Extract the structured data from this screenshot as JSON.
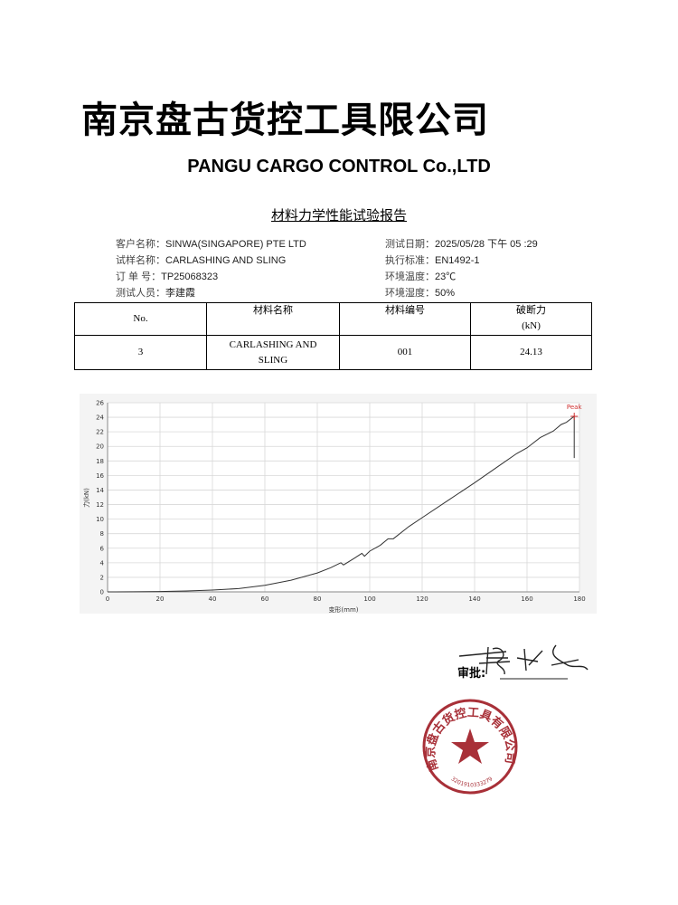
{
  "header": {
    "company_cn": "南京盘古货控工具限公司",
    "company_en": "PANGU CARGO CONTROL Co.,LTD",
    "report_title": "材料力学性能试验报告"
  },
  "info": {
    "left": [
      {
        "label": "客户名称：",
        "value": "SINWA(SINGAPORE) PTE LTD"
      },
      {
        "label": "试样名称：",
        "value": "CARLASHING AND SLING"
      },
      {
        "label": "订 单 号：",
        "value": "TP25068323"
      },
      {
        "label": "测试人员：",
        "value": "李建霞"
      }
    ],
    "right": [
      {
        "label": "测试日期：",
        "value": "2025/05/28 下午 05 :29"
      },
      {
        "label": "执行标准：",
        "value": "EN1492-1"
      },
      {
        "label": "环境温度：",
        "value": "23℃"
      },
      {
        "label": "环境湿度：",
        "value": "50%"
      }
    ]
  },
  "table": {
    "headers": [
      "No.",
      "材料名称",
      "材料编号",
      "破断力",
      "(kN)"
    ],
    "rows": [
      [
        "3",
        "CARLASHING AND SLING",
        "001",
        "24.13"
      ]
    ]
  },
  "chart_data": {
    "type": "line",
    "xlabel": "变形(mm)",
    "ylabel": "力(kN)",
    "xlim": [
      0,
      180
    ],
    "ylim": [
      0,
      26
    ],
    "xticks": [
      0,
      20,
      40,
      60,
      80,
      100,
      120,
      140,
      160,
      180
    ],
    "yticks": [
      0,
      2,
      4,
      6,
      8,
      10,
      12,
      14,
      16,
      18,
      20,
      22,
      24,
      26
    ],
    "grid": true,
    "annotation": "Peak",
    "peak": {
      "x": 178,
      "y": 24.13
    },
    "x": [
      0,
      10,
      20,
      30,
      40,
      50,
      60,
      70,
      80,
      85,
      89,
      90,
      94,
      97,
      98,
      100,
      104,
      107,
      109,
      115,
      120,
      130,
      140,
      150,
      156,
      160,
      165,
      170,
      173,
      175,
      178,
      178
    ],
    "y": [
      0,
      0.02,
      0.05,
      0.12,
      0.25,
      0.45,
      0.9,
      1.6,
      2.6,
      3.3,
      4.0,
      3.7,
      4.6,
      5.3,
      4.9,
      5.6,
      6.4,
      7.3,
      7.3,
      9.0,
      10.2,
      12.6,
      15.0,
      17.5,
      19.0,
      19.8,
      21.2,
      22.1,
      23.0,
      23.3,
      24.13,
      18.4
    ],
    "colors": {
      "line": "#333333",
      "peak": "#d03030",
      "grid": "#d8d8d8"
    }
  },
  "approval": {
    "label": "审批:"
  },
  "stamp": {
    "text": "南京盘古货控工具有限公司",
    "number": "3201910333279",
    "color": "#a83038"
  }
}
